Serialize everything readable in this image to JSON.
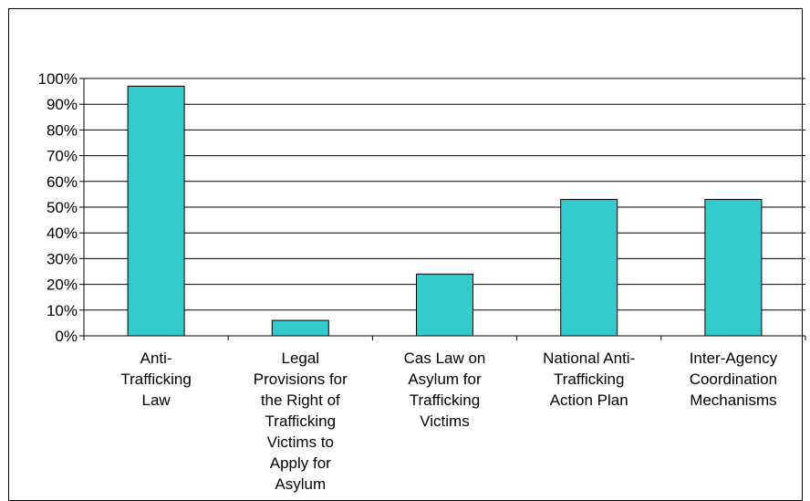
{
  "chart_data": {
    "type": "bar",
    "title": "",
    "xlabel": "",
    "ylabel": "",
    "categories": [
      [
        "Anti-",
        "Trafficking",
        "Law"
      ],
      [
        "Legal",
        "Provisions for",
        "the Right of",
        "Trafficking",
        "Victims to",
        "Apply for",
        "Asylum"
      ],
      [
        "Cas Law on",
        "Asylum for",
        "Trafficking",
        "Victims"
      ],
      [
        "National Anti-",
        "Trafficking",
        "Action Plan"
      ],
      [
        "Inter-Agency",
        "Coordination",
        "Mechanisms"
      ]
    ],
    "values": [
      97,
      6,
      24,
      53,
      53
    ],
    "ylim": [
      0,
      100
    ],
    "yticks": [
      "0%",
      "10%",
      "20%",
      "30%",
      "40%",
      "50%",
      "60%",
      "70%",
      "80%",
      "90%",
      "100%"
    ],
    "grid": true,
    "legend": "none",
    "bar_color": "#33CCCC",
    "bar_stroke": "#000000"
  }
}
